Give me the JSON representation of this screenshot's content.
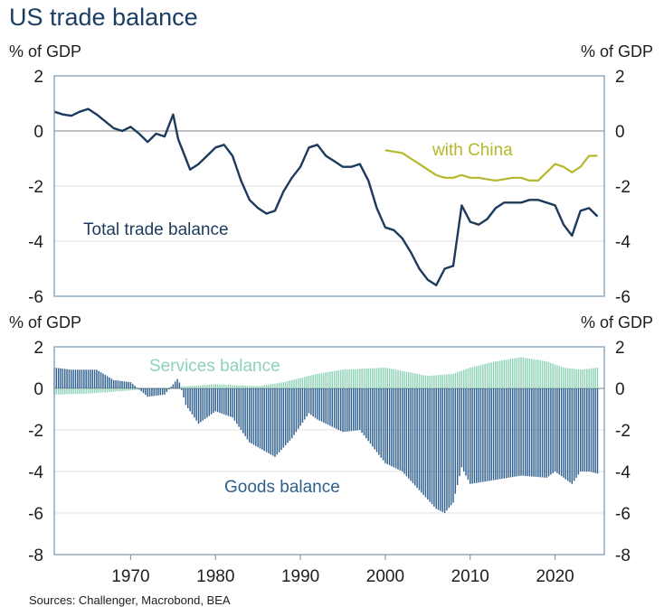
{
  "title": "US trade balance",
  "source": "Sources: Challenger, Macrobond, BEA",
  "colors": {
    "title": "#1b3f63",
    "total": "#1b3a5c",
    "china": "#b5b82a",
    "services": "#8ed3b7",
    "goods": "#2e5f8f",
    "axis": "#7f9cb5",
    "grid": "#e2e2e2",
    "zero": "#9a9a9a"
  },
  "chart_data": [
    {
      "type": "line",
      "title": "US trade balance",
      "ylabel_left": "% of GDP",
      "ylabel_right": "% of GDP",
      "ylim": [
        -6,
        2
      ],
      "yticks": [
        2,
        0,
        -2,
        -4,
        -6
      ],
      "xlim": [
        1961,
        2025.8
      ],
      "xticks": [
        1970,
        1980,
        1990,
        2000,
        2010,
        2020
      ],
      "series": [
        {
          "name": "Total trade balance",
          "x": [
            1961.0,
            1962.0,
            1963.0,
            1964.0,
            1965.0,
            1966.0,
            1967.0,
            1968.0,
            1969.0,
            1970.0,
            1971.0,
            1972.0,
            1973.0,
            1974.0,
            1975.0,
            1975.6,
            1976.5,
            1977.0,
            1978.0,
            1979.0,
            1980.0,
            1981.0,
            1982.0,
            1983.0,
            1984.0,
            1985.0,
            1986.0,
            1987.0,
            1988.0,
            1989.0,
            1990.0,
            1991.0,
            1992.0,
            1993.0,
            1994.0,
            1995.0,
            1996.0,
            1997.0,
            1998.0,
            1999.0,
            2000.0,
            2001.0,
            2002.0,
            2003.0,
            2004.0,
            2005.0,
            2006.0,
            2007.0,
            2008.0,
            2009.0,
            2010.0,
            2011.0,
            2012.0,
            2013.0,
            2014.0,
            2015.0,
            2016.0,
            2017.0,
            2018.0,
            2019.0,
            2020.0,
            2021.0,
            2022.0,
            2023.0,
            2024.0,
            2025.0
          ],
          "values": [
            0.7,
            0.6,
            0.55,
            0.7,
            0.8,
            0.6,
            0.35,
            0.1,
            0.0,
            0.15,
            -0.1,
            -0.4,
            -0.1,
            -0.2,
            0.6,
            -0.3,
            -1.0,
            -1.4,
            -1.2,
            -0.9,
            -0.6,
            -0.5,
            -0.9,
            -1.8,
            -2.5,
            -2.8,
            -3.0,
            -2.9,
            -2.2,
            -1.7,
            -1.3,
            -0.6,
            -0.5,
            -0.9,
            -1.1,
            -1.3,
            -1.3,
            -1.2,
            -1.8,
            -2.8,
            -3.5,
            -3.6,
            -3.9,
            -4.4,
            -5.0,
            -5.4,
            -5.6,
            -5.0,
            -4.9,
            -2.7,
            -3.3,
            -3.4,
            -3.2,
            -2.8,
            -2.6,
            -2.6,
            -2.6,
            -2.5,
            -2.5,
            -2.6,
            -2.7,
            -3.4,
            -3.8,
            -2.9,
            -2.8,
            -3.1
          ],
          "label": "Total trade balance"
        },
        {
          "name": "with China",
          "x": [
            2000.0,
            2002.0,
            2003.0,
            2004.0,
            2005.0,
            2006.0,
            2007.0,
            2008.0,
            2009.0,
            2010.0,
            2011.0,
            2012.0,
            2013.0,
            2014.0,
            2015.0,
            2016.0,
            2017.0,
            2018.0,
            2019.0,
            2020.0,
            2021.0,
            2022.0,
            2023.0,
            2024.0,
            2025.0
          ],
          "values": [
            -0.7,
            -0.8,
            -1.0,
            -1.2,
            -1.4,
            -1.6,
            -1.7,
            -1.7,
            -1.6,
            -1.7,
            -1.7,
            -1.75,
            -1.8,
            -1.75,
            -1.7,
            -1.7,
            -1.8,
            -1.8,
            -1.5,
            -1.2,
            -1.3,
            -1.5,
            -1.3,
            -0.9,
            -0.9
          ],
          "label": "with China"
        }
      ]
    },
    {
      "type": "bar",
      "ylabel_left": "% of GDP",
      "ylabel_right": "% of GDP",
      "ylim": [
        -8,
        2
      ],
      "yticks": [
        2,
        0,
        -2,
        -4,
        -6,
        -8
      ],
      "xlim": [
        1961,
        2025.8
      ],
      "xticks": [
        1970,
        1980,
        1990,
        2000,
        2010,
        2020
      ],
      "series": [
        {
          "name": "Services balance",
          "x": [
            1961.0,
            1965.0,
            1970.0,
            1975.0,
            1980.0,
            1985.0,
            1988.0,
            1992.0,
            1995.0,
            2000.0,
            2005.0,
            2008.0,
            2010.0,
            2013.0,
            2016.0,
            2019.0,
            2021.0,
            2023.0,
            2025.0
          ],
          "values": [
            -0.3,
            -0.25,
            -0.1,
            0.05,
            0.2,
            0.1,
            0.3,
            0.7,
            0.9,
            1.0,
            0.6,
            0.7,
            1.0,
            1.3,
            1.5,
            1.3,
            1.0,
            0.9,
            1.0
          ],
          "label": "Services balance"
        },
        {
          "name": "Goods balance",
          "x": [
            1961.0,
            1963.0,
            1966.0,
            1968.0,
            1970.0,
            1972.0,
            1974.0,
            1975.6,
            1976.5,
            1978.0,
            1980.0,
            1982.0,
            1984.0,
            1987.0,
            1989.0,
            1991.0,
            1992.0,
            1995.0,
            1997.0,
            2000.0,
            2002.0,
            2004.0,
            2006.0,
            2007.0,
            2008.0,
            2009.0,
            2010.0,
            2013.0,
            2016.0,
            2019.0,
            2020.0,
            2022.0,
            2023.0,
            2024.0,
            2025.0
          ],
          "values": [
            1.0,
            0.9,
            0.9,
            0.4,
            0.3,
            -0.4,
            -0.3,
            0.5,
            -0.8,
            -1.7,
            -1.1,
            -1.4,
            -2.6,
            -3.3,
            -2.4,
            -1.2,
            -1.5,
            -2.1,
            -2.0,
            -3.6,
            -4.0,
            -4.9,
            -5.8,
            -6.0,
            -5.5,
            -3.8,
            -4.6,
            -4.4,
            -4.2,
            -4.3,
            -4.0,
            -4.6,
            -4.0,
            -4.0,
            -4.1
          ],
          "label": "Goods balance"
        }
      ]
    }
  ]
}
